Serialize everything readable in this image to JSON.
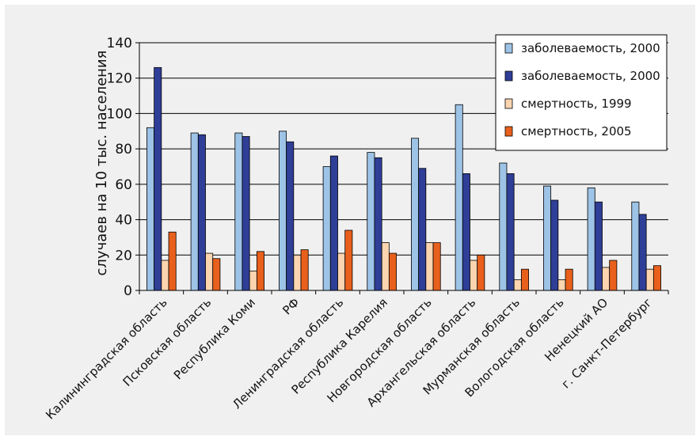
{
  "chart_data": {
    "type": "bar",
    "ylabel": "случаев на 10 тыс. населения",
    "ylim": [
      0,
      140
    ],
    "yticks": [
      "0",
      "20",
      "40",
      "60",
      "80",
      "100",
      "120",
      "140"
    ],
    "grid": true,
    "legend_position": "top-right",
    "categories": [
      "Калининградская область",
      "Псковская область",
      "Республика Коми",
      "РФ",
      "Ленинградская область",
      "Республика Карелия",
      "Новгородская область",
      "Архангельская область",
      "Мурманская область",
      "Вологодская область",
      "Ненецкий АО",
      "г. Санкт-Петербург"
    ],
    "series": [
      {
        "name": "заболеваемость, 2000",
        "color": "#9dc3e6",
        "values": [
          92,
          89,
          89,
          90,
          70,
          78,
          86,
          105,
          72,
          59,
          58,
          50
        ]
      },
      {
        "name": "заболеваемость, 2000",
        "color": "#2f3e96",
        "values": [
          126,
          88,
          87,
          84,
          76,
          75,
          69,
          66,
          66,
          51,
          50,
          43
        ]
      },
      {
        "name": "смертность, 1999",
        "color": "#fbd4b0",
        "values": [
          17,
          21,
          11,
          20,
          21,
          27,
          27,
          17,
          6,
          6,
          13,
          12
        ]
      },
      {
        "name": "смертность, 2005",
        "color": "#e8601c",
        "values": [
          33,
          18,
          22,
          23,
          34,
          21,
          27,
          20,
          12,
          12,
          17,
          14
        ]
      }
    ]
  }
}
